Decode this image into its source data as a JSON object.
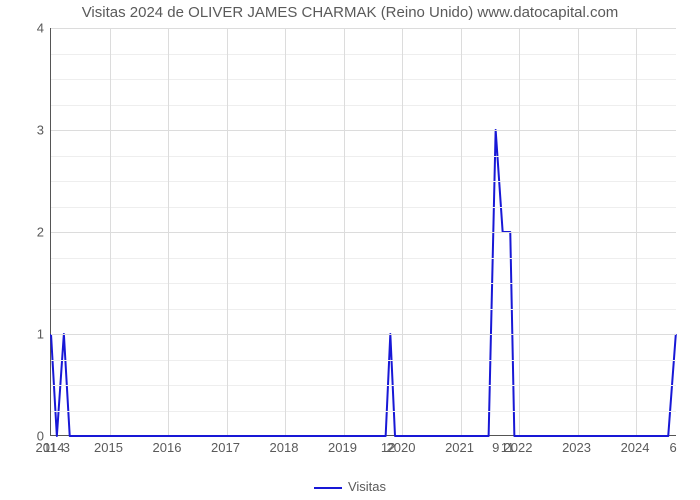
{
  "chart": {
    "type": "line",
    "title": "Visitas 2024 de OLIVER JAMES CHARMAK (Reino Unido) www.datocapital.com",
    "title_fontsize": 15,
    "background_color": "#ffffff",
    "grid_color": "#dcdcdc",
    "minor_grid_color": "#eeeeee",
    "axis_color": "#555555",
    "label_color": "#5a5a5a",
    "label_fontsize": 13,
    "line_color": "#1818d6",
    "line_width": 2,
    "x_range": [
      2014,
      2024.7
    ],
    "y_range": [
      0,
      4
    ],
    "y_ticks": [
      0,
      1,
      2,
      3,
      4
    ],
    "y_minor_ticks": [
      0.25,
      0.5,
      0.75,
      1.25,
      1.5,
      1.75,
      2.25,
      2.5,
      2.75,
      3.25,
      3.5,
      3.75
    ],
    "x_ticks": [
      2014,
      2015,
      2016,
      2017,
      2018,
      2019,
      2020,
      2021,
      2022,
      2023,
      2024
    ],
    "bar_labels": [
      {
        "x": 2014.0,
        "text": "11"
      },
      {
        "x": 2014.28,
        "text": "3"
      },
      {
        "x": 2019.78,
        "text": "12"
      },
      {
        "x": 2021.62,
        "text": "9"
      },
      {
        "x": 2021.82,
        "text": "11"
      },
      {
        "x": 2024.65,
        "text": "6"
      }
    ],
    "points": [
      {
        "x": 2014.0,
        "y": 1
      },
      {
        "x": 2014.1,
        "y": 0
      },
      {
        "x": 2014.22,
        "y": 1
      },
      {
        "x": 2014.32,
        "y": 0
      },
      {
        "x": 2019.72,
        "y": 0
      },
      {
        "x": 2019.8,
        "y": 1
      },
      {
        "x": 2019.88,
        "y": 0
      },
      {
        "x": 2021.48,
        "y": 0
      },
      {
        "x": 2021.6,
        "y": 3
      },
      {
        "x": 2021.72,
        "y": 2
      },
      {
        "x": 2021.85,
        "y": 2
      },
      {
        "x": 2021.92,
        "y": 0
      },
      {
        "x": 2024.55,
        "y": 0
      },
      {
        "x": 2024.68,
        "y": 1
      }
    ],
    "legend_label": "Visitas"
  }
}
